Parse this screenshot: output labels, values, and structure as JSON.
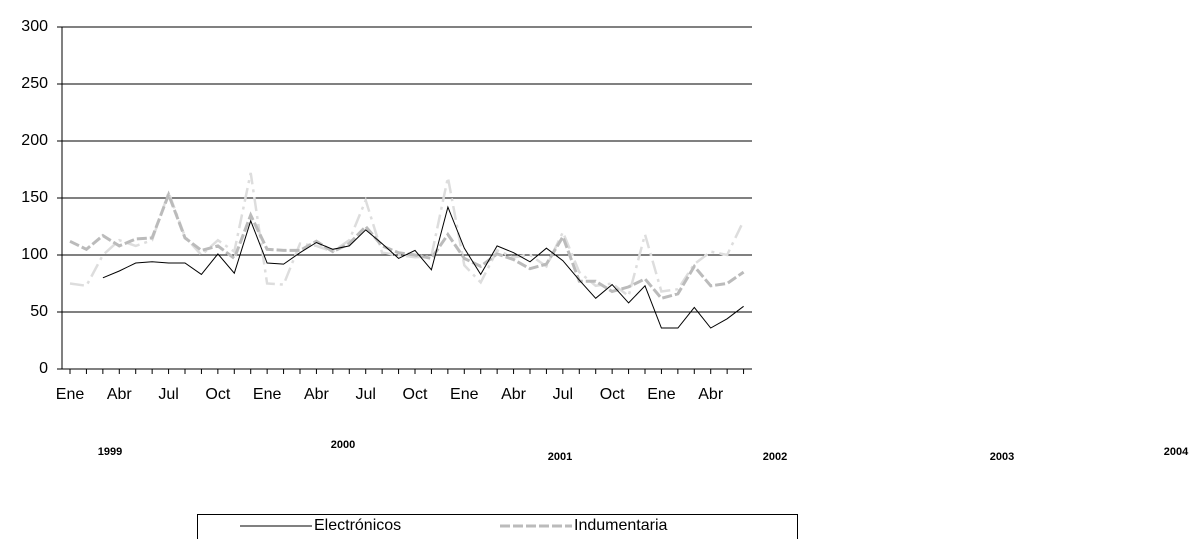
{
  "chart_data": {
    "type": "line",
    "categories": [
      "Ene",
      null,
      null,
      "Abr",
      null,
      null,
      "Jul",
      null,
      null,
      "Oct",
      null,
      null,
      "Ene",
      null,
      null,
      "Abr",
      null,
      null,
      "Jul",
      null,
      null,
      "Oct",
      null,
      null,
      "Ene",
      null,
      null,
      "Abr",
      null,
      null,
      "Jul",
      null,
      null,
      "Oct",
      null,
      null,
      "Ene",
      null,
      null,
      "Abr",
      null,
      null
    ],
    "year_labels": [
      "1999",
      "2000",
      "2001",
      "2002",
      "2003",
      "2004"
    ],
    "series": [
      {
        "name": "Electrónicos",
        "color": "#000000",
        "values": [
          null,
          null,
          80,
          86,
          93,
          94,
          93,
          93,
          83,
          101,
          84,
          130,
          93,
          92,
          102,
          111,
          105,
          108,
          122,
          110,
          97,
          104,
          87,
          142,
          106,
          83,
          108,
          102,
          94,
          106,
          95,
          78,
          62,
          74,
          58,
          73,
          36,
          36,
          54,
          36,
          44,
          55
        ]
      },
      {
        "name": "Indumentaria",
        "color": "#bbbbbb",
        "values": [
          112,
          105,
          117,
          108,
          114,
          115,
          153,
          115,
          104,
          108,
          97,
          135,
          105,
          104,
          104,
          112,
          103,
          110,
          125,
          108,
          102,
          100,
          97,
          118,
          97,
          90,
          101,
          96,
          88,
          92,
          116,
          77,
          77,
          68,
          72,
          79,
          62,
          66,
          90,
          73,
          75,
          85
        ]
      },
      {
        "color": "#dddddd",
        "values": [
          75,
          73,
          100,
          113,
          108,
          113,
          155,
          116,
          100,
          113,
          103,
          172,
          75,
          74,
          110,
          108,
          103,
          113,
          148,
          102,
          100,
          98,
          99,
          168,
          91,
          76,
          104,
          98,
          100,
          90,
          120,
          85,
          73,
          75,
          64,
          118,
          68,
          70,
          92,
          103,
          100,
          130
        ]
      }
    ],
    "ylim": [
      0,
      300
    ],
    "yticks": [
      0,
      50,
      100,
      150,
      200,
      250,
      300
    ],
    "grid": true
  }
}
